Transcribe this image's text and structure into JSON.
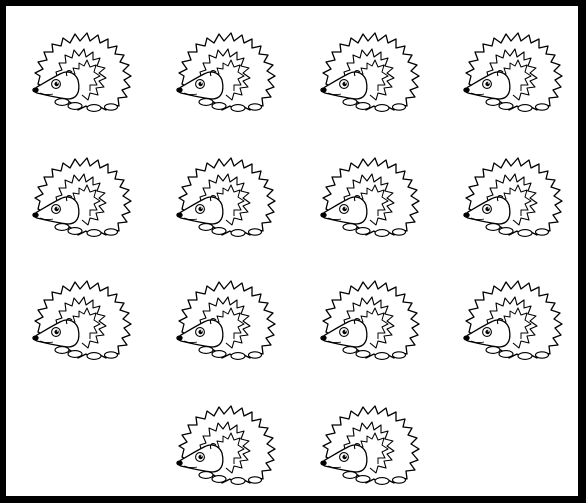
{
  "worksheet": {
    "border_color": "#000000",
    "background_color": "#ffffff",
    "picture": {
      "icon": "hedgehog-icon",
      "line_color": "#000000",
      "fill_color": "#ffffff",
      "count": 14,
      "rows": [
        4,
        4,
        4,
        2
      ]
    }
  }
}
